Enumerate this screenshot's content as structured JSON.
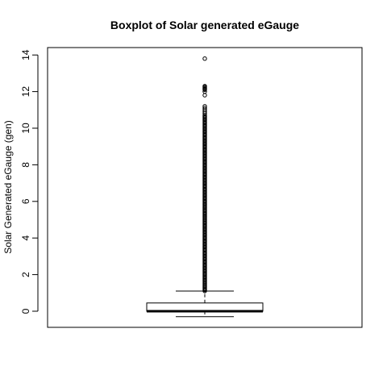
{
  "chart_data": {
    "type": "boxplot",
    "title": "Boxplot of Solar generated eGauge",
    "xlabel": "",
    "ylabel": "Solar Generated eGauge (gen)",
    "ylim": [
      -0.9,
      14.4
    ],
    "yticks": [
      0,
      2,
      4,
      6,
      8,
      10,
      12,
      14
    ],
    "grid": false,
    "box": {
      "whisker_low": -0.3,
      "q1": 0.0,
      "median": 0.0,
      "q3": 0.45,
      "whisker_high": 1.1
    },
    "outliers": {
      "dense_range": [
        1.1,
        10.7
      ],
      "sparse": [
        10.8,
        10.9,
        11.0,
        11.1,
        11.2,
        11.8,
        12.0,
        12.1,
        12.15,
        12.2,
        12.25,
        12.3,
        13.8
      ]
    }
  }
}
